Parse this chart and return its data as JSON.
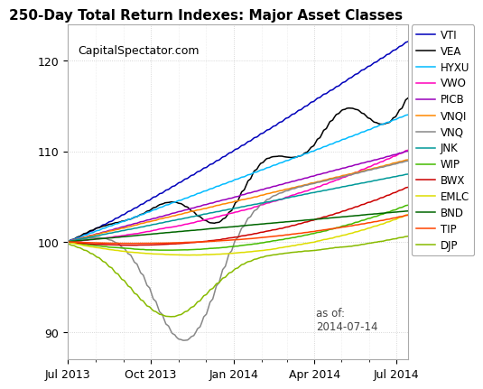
{
  "title": "250-Day Total Return Indexes: Major Asset Classes",
  "watermark": "CapitalSpectator.com",
  "date_label": "as of:\n2014-07-14",
  "ylim": [
    87,
    124
  ],
  "yticks": [
    90,
    100,
    110,
    120
  ],
  "xlabel": "",
  "ylabel": "",
  "background_color": "#ffffff",
  "plot_bg_color": "#ffffff",
  "series": [
    {
      "label": "VTI",
      "color": "#0000BB",
      "lw": 1.1
    },
    {
      "label": "VEA",
      "color": "#000000",
      "lw": 1.1
    },
    {
      "label": "HYXU",
      "color": "#00BBFF",
      "lw": 1.1
    },
    {
      "label": "VWO",
      "color": "#FF00BB",
      "lw": 1.1
    },
    {
      "label": "PICB",
      "color": "#9900BB",
      "lw": 1.1
    },
    {
      "label": "VNQI",
      "color": "#FF8800",
      "lw": 1.1
    },
    {
      "label": "VNQ",
      "color": "#888888",
      "lw": 1.1
    },
    {
      "label": "JNK",
      "color": "#009999",
      "lw": 1.1
    },
    {
      "label": "WIP",
      "color": "#44BB00",
      "lw": 1.1
    },
    {
      "label": "BWX",
      "color": "#CC0000",
      "lw": 1.1
    },
    {
      "label": "EMLC",
      "color": "#DDDD00",
      "lw": 1.1
    },
    {
      "label": "BND",
      "color": "#006600",
      "lw": 1.1
    },
    {
      "label": "TIP",
      "color": "#FF4400",
      "lw": 1.1
    },
    {
      "label": "DJP",
      "color": "#88BB00",
      "lw": 1.1
    }
  ],
  "start_date": "2013-07-01",
  "end_date": "2014-07-14",
  "title_fontsize": 11,
  "tick_fontsize": 9,
  "watermark_fontsize": 9
}
